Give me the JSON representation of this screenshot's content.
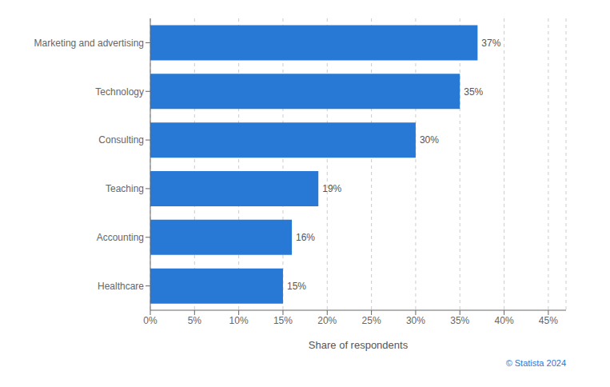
{
  "chart_data": {
    "type": "bar",
    "orientation": "horizontal",
    "categories": [
      "Healthcare",
      "Accounting",
      "Teaching",
      "Consulting",
      "Technology",
      "Marketing and advertising"
    ],
    "values": [
      15,
      16,
      19,
      30,
      35,
      37
    ],
    "value_labels": [
      "15%",
      "16%",
      "19%",
      "30%",
      "35%",
      "37%"
    ],
    "data_labels": true,
    "color": "#2878d6",
    "xlabel": "Share of respondents",
    "xlim": [
      0,
      47
    ],
    "xticks": [
      {
        "value": 0,
        "label": "0%"
      },
      {
        "value": 5,
        "label": "5%"
      },
      {
        "value": 10,
        "label": "10%"
      },
      {
        "value": 15,
        "label": "15%"
      },
      {
        "value": 20,
        "label": "20%"
      },
      {
        "value": 25,
        "label": "25%"
      },
      {
        "value": 30,
        "label": "30%"
      },
      {
        "value": 35,
        "label": "35%"
      },
      {
        "value": 40,
        "label": "40%"
      },
      {
        "value": 45,
        "label": "45%"
      }
    ],
    "grid": true,
    "annotation": "© Statista 2024"
  }
}
